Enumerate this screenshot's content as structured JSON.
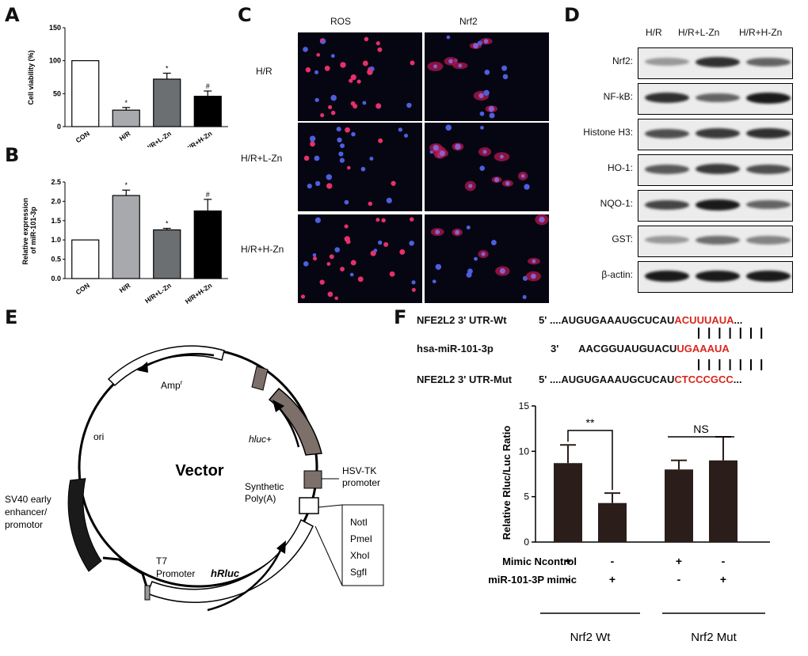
{
  "panels": {
    "A": "A",
    "B": "B",
    "C": "C",
    "D": "D",
    "E": "E",
    "F": "F"
  },
  "chart_data": [
    {
      "type": "bar",
      "panel": "A",
      "ylabel": "Cell viability (%)",
      "ylim": [
        0,
        150
      ],
      "yticks": [
        0,
        50,
        100,
        150
      ],
      "categories": [
        "CON",
        "H/R",
        "H/R+L-Zn",
        "H/R+H-Zn"
      ],
      "values": [
        100,
        25,
        72,
        46
      ],
      "errors": [
        0,
        4,
        9,
        8
      ],
      "marks": [
        "",
        "*",
        "*",
        "#"
      ],
      "colors": [
        "#ffffff",
        "#a7a9ad",
        "#6b6f71",
        "#000000"
      ]
    },
    {
      "type": "bar",
      "panel": "B",
      "ylabel": "Relative expression of miR-101-3p",
      "ylabel_lines": [
        "Relative expression",
        "of miR-101-3p"
      ],
      "ylim": [
        0,
        2.5
      ],
      "yticks": [
        0.0,
        0.5,
        1.0,
        1.5,
        2.0,
        2.5
      ],
      "ytick_labels": [
        "0.0",
        "0.5",
        "1.0",
        "1.5",
        "2.0",
        "2.5"
      ],
      "categories": [
        "CON",
        "H/R",
        "H/R+L-Zn",
        "H/R+H-Zn"
      ],
      "values": [
        1.0,
        2.15,
        1.26,
        1.75
      ],
      "errors": [
        0,
        0.14,
        0.04,
        0.3
      ],
      "marks": [
        "",
        "*",
        "*",
        "#"
      ],
      "colors": [
        "#ffffff",
        "#a7a9ad",
        "#6b6f71",
        "#000000"
      ]
    },
    {
      "type": "bar",
      "panel": "F",
      "ylabel": "Relative Rluc/Luc Ratio",
      "ylim": [
        0,
        15
      ],
      "yticks": [
        0,
        5,
        10,
        15
      ],
      "values": [
        8.7,
        4.3,
        8.0,
        9.0
      ],
      "errors": [
        2.0,
        1.1,
        1.0,
        2.6
      ],
      "color": "#2b1d1a",
      "row_labels": [
        "Mimic Ncontrol",
        "miR-101-3P mimic"
      ],
      "signs": [
        [
          "+",
          "-",
          "+",
          "-"
        ],
        [
          "-",
          "+",
          "-",
          "+"
        ]
      ],
      "groups": [
        "Nrf2 Wt",
        "Nrf2 Mut"
      ],
      "comparisons": [
        {
          "label": "**",
          "bars": [
            0,
            1
          ]
        },
        {
          "label": "NS",
          "bars": [
            2,
            3
          ]
        }
      ]
    }
  ],
  "panelC": {
    "columns": [
      "ROS",
      "Nrf2"
    ],
    "rows": [
      "H/R",
      "H/R+L-Zn",
      "H/R+H-Zn"
    ]
  },
  "panelD": {
    "columns": [
      "H/R",
      "H/R+L-Zn",
      "H/R+H-Zn"
    ],
    "bands": [
      {
        "label": "Nrf2:",
        "intensity": [
          0.35,
          0.85,
          0.6
        ]
      },
      {
        "label": "NF-kB:",
        "intensity": [
          0.85,
          0.6,
          0.95
        ]
      },
      {
        "label": "Histone H3:",
        "intensity": [
          0.7,
          0.8,
          0.85
        ]
      },
      {
        "label": "HO-1:",
        "intensity": [
          0.65,
          0.8,
          0.7
        ]
      },
      {
        "label": "NQO-1:",
        "intensity": [
          0.75,
          0.95,
          0.6
        ]
      },
      {
        "label": "GST:",
        "intensity": [
          0.35,
          0.55,
          0.45
        ]
      },
      {
        "label": "β-actin:",
        "intensity": [
          0.95,
          0.95,
          0.95
        ]
      }
    ]
  },
  "panelE": {
    "title": "Vector",
    "amp": "Amp",
    "amp_sup": "r",
    "ori": "ori",
    "hluc": "hluc",
    "hluc_plus": "+",
    "hsv1": "HSV-TK",
    "hsv2": "promoter",
    "syn1": "Synthetic",
    "syn2": "Poly(A)",
    "sv40": [
      "SV40 early",
      "enhancer/",
      "promotor"
    ],
    "t7": [
      "T7",
      "Promoter"
    ],
    "hrluc": "hRluc",
    "sites": [
      "NotI",
      "PmeI",
      "XhoI",
      "SgfI"
    ]
  },
  "panelF": {
    "wt_label": "NFE2L2 3' UTR-Wt",
    "wt_end": "5'",
    "wt_black": "....AUGUGAAAUGCUCAU",
    "wt_red": "ACUUUAUA",
    "wt_tail": "...",
    "mir_label": "hsa-miR-101-3p",
    "mir_end": "3'",
    "mir_black": "AACGGUAUGUACU",
    "mir_red": "UGAAAUA",
    "mut_label": "NFE2L2 3' UTR-Mut",
    "mut_end": "5'",
    "mut_black": "....AUGUGAAAUGCUCAU",
    "mut_red": "CTCCCGCC",
    "mut_tail": "..."
  }
}
